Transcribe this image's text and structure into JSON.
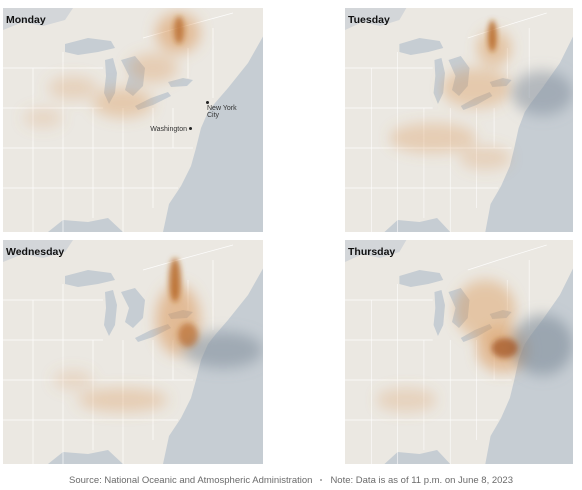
{
  "panels": [
    {
      "label": "Monday",
      "cities": [
        {
          "name": "New York City"
        },
        {
          "name": "Washington"
        }
      ]
    },
    {
      "label": "Tuesday"
    },
    {
      "label": "Wednesday"
    },
    {
      "label": "Thursday"
    }
  ],
  "footer": {
    "source": "Source: National Oceanic and Atmospheric Administration",
    "note": "Note: Data is as of 11 p.m. on June 8, 2023"
  }
}
